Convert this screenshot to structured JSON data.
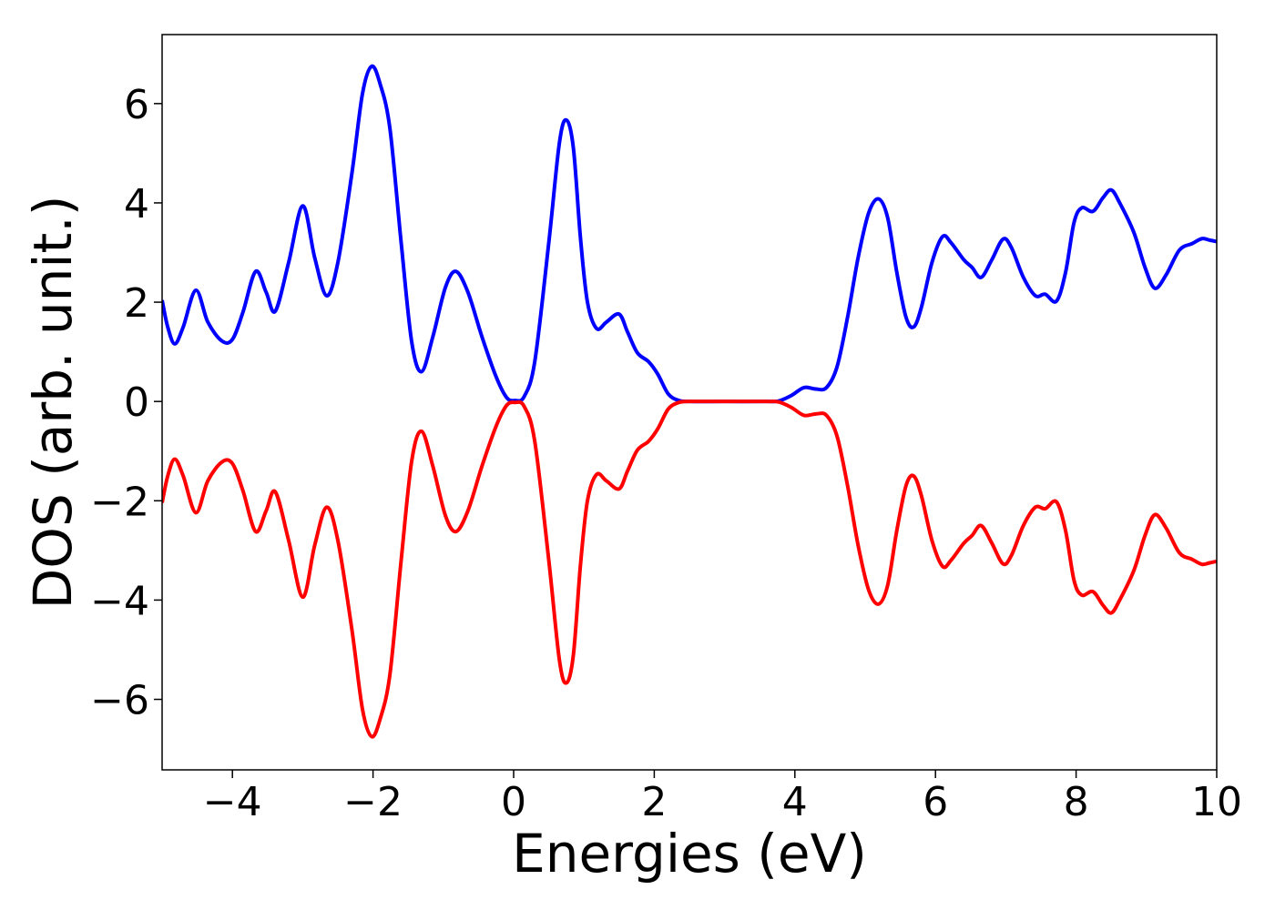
{
  "chart_data": {
    "type": "line",
    "xlabel": "Energies (eV)",
    "ylabel": "DOS (arb. unit.)",
    "xlim": [
      -5,
      10
    ],
    "ylim": [
      -7.42,
      7.39
    ],
    "xticks": [
      {
        "value": -4,
        "label": "−4"
      },
      {
        "value": -2,
        "label": "−2"
      },
      0,
      2,
      4,
      6,
      8,
      10
    ],
    "yticks": [
      {
        "value": -6,
        "label": "−6"
      },
      {
        "value": -4,
        "label": "−4"
      },
      {
        "value": -2,
        "label": "−2"
      },
      0,
      2,
      4,
      6
    ],
    "grid": false,
    "x": [
      -5.0,
      -4.92,
      -4.82,
      -4.7,
      -4.52,
      -4.35,
      -4.15,
      -4.0,
      -3.85,
      -3.67,
      -3.52,
      -3.39,
      -3.2,
      -3.0,
      -2.83,
      -2.66,
      -2.5,
      -2.3,
      -2.15,
      -2.02,
      -1.9,
      -1.76,
      -1.6,
      -1.45,
      -1.31,
      -1.15,
      -0.97,
      -0.82,
      -0.65,
      -0.45,
      -0.25,
      -0.1,
      0.02,
      0.15,
      0.3,
      0.5,
      0.65,
      0.75,
      0.85,
      0.95,
      1.05,
      1.18,
      1.32,
      1.5,
      1.62,
      1.76,
      1.92,
      2.05,
      2.2,
      2.35,
      2.5,
      3.0,
      3.6,
      3.77,
      3.95,
      4.13,
      4.3,
      4.45,
      4.6,
      4.75,
      4.9,
      5.05,
      5.19,
      5.32,
      5.45,
      5.58,
      5.69,
      5.8,
      5.95,
      6.1,
      6.22,
      6.4,
      6.52,
      6.65,
      6.8,
      6.96,
      7.08,
      7.25,
      7.42,
      7.56,
      7.72,
      7.85,
      7.97,
      8.08,
      8.24,
      8.38,
      8.5,
      8.62,
      8.82,
      8.98,
      9.12,
      9.28,
      9.47,
      9.65,
      9.79,
      9.9,
      10.0
    ],
    "series": [
      {
        "color": "#0000ff",
        "values": [
          2.04,
          1.5,
          1.16,
          1.5,
          2.24,
          1.6,
          1.22,
          1.25,
          1.8,
          2.62,
          2.2,
          1.82,
          2.8,
          3.94,
          2.9,
          2.13,
          2.8,
          4.6,
          6.2,
          6.75,
          6.4,
          5.5,
          3.2,
          1.2,
          0.6,
          1.3,
          2.3,
          2.62,
          2.2,
          1.3,
          0.5,
          0.08,
          0.02,
          0.1,
          0.8,
          3.2,
          5.2,
          5.67,
          5.1,
          3.3,
          2.0,
          1.47,
          1.6,
          1.76,
          1.4,
          0.98,
          0.8,
          0.55,
          0.15,
          0.02,
          0,
          0,
          0,
          0.01,
          0.12,
          0.28,
          0.25,
          0.28,
          0.7,
          1.7,
          2.9,
          3.8,
          4.08,
          3.7,
          2.6,
          1.7,
          1.5,
          1.9,
          2.8,
          3.32,
          3.2,
          2.86,
          2.7,
          2.5,
          2.85,
          3.27,
          3.1,
          2.5,
          2.13,
          2.16,
          2.02,
          2.6,
          3.6,
          3.9,
          3.83,
          4.1,
          4.26,
          4.0,
          3.41,
          2.7,
          2.28,
          2.55,
          3.05,
          3.18,
          3.28,
          3.25,
          3.22
        ]
      },
      {
        "color": "#ff0000",
        "values": [
          -2.04,
          -1.5,
          -1.16,
          -1.5,
          -2.24,
          -1.6,
          -1.22,
          -1.25,
          -1.8,
          -2.62,
          -2.2,
          -1.82,
          -2.8,
          -3.94,
          -2.9,
          -2.13,
          -2.8,
          -4.6,
          -6.2,
          -6.75,
          -6.4,
          -5.5,
          -3.2,
          -1.2,
          -0.6,
          -1.3,
          -2.3,
          -2.62,
          -2.2,
          -1.3,
          -0.5,
          -0.08,
          -0.02,
          -0.1,
          -0.8,
          -3.2,
          -5.2,
          -5.67,
          -5.1,
          -3.3,
          -2.0,
          -1.47,
          -1.6,
          -1.76,
          -1.4,
          -0.98,
          -0.8,
          -0.55,
          -0.15,
          -0.02,
          0,
          0,
          0,
          -0.01,
          -0.12,
          -0.28,
          -0.25,
          -0.28,
          -0.7,
          -1.7,
          -2.9,
          -3.8,
          -4.08,
          -3.7,
          -2.6,
          -1.7,
          -1.5,
          -1.9,
          -2.8,
          -3.32,
          -3.2,
          -2.86,
          -2.7,
          -2.5,
          -2.85,
          -3.27,
          -3.1,
          -2.5,
          -2.13,
          -2.16,
          -2.02,
          -2.6,
          -3.6,
          -3.9,
          -3.83,
          -4.1,
          -4.26,
          -4.0,
          -3.41,
          -2.7,
          -2.28,
          -2.55,
          -3.05,
          -3.18,
          -3.28,
          -3.25,
          -3.22
        ]
      }
    ]
  }
}
